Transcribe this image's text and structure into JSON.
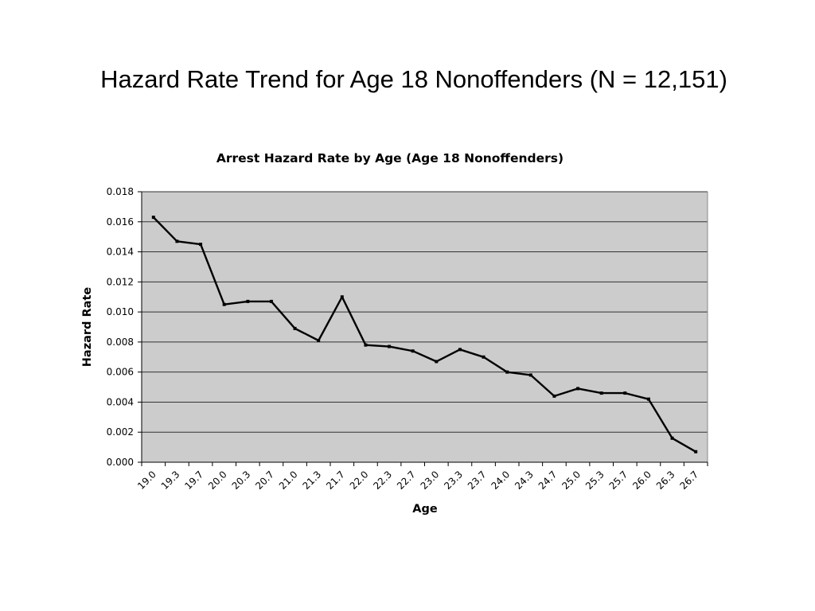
{
  "slide": {
    "title": "Hazard Rate Trend for Age 18 Nonoffenders (N = 12,151)"
  },
  "chart_data": {
    "type": "line",
    "title": "Arrest Hazard Rate by Age (Age 18 Nonoffenders)",
    "xlabel": "Age",
    "ylabel": "Hazard Rate",
    "ylim": [
      0,
      0.018
    ],
    "y_ticks": [
      "0.000",
      "0.002",
      "0.004",
      "0.006",
      "0.008",
      "0.010",
      "0.012",
      "0.014",
      "0.016",
      "0.018"
    ],
    "categories": [
      "19.0",
      "19.3",
      "19.7",
      "20.0",
      "20.3",
      "20.7",
      "21.0",
      "21.3",
      "21.7",
      "22.0",
      "22.3",
      "22.7",
      "23.0",
      "23.3",
      "23.7",
      "24.0",
      "24.3",
      "24.7",
      "25.0",
      "25.3",
      "25.7",
      "26.0",
      "26.3",
      "26.7"
    ],
    "series": [
      {
        "values": [
          0.0163,
          0.0147,
          0.0145,
          0.0105,
          0.0107,
          0.0107,
          0.0089,
          0.0081,
          0.011,
          0.0078,
          0.0077,
          0.0074,
          0.0067,
          0.0075,
          0.007,
          0.006,
          0.0058,
          0.0044,
          0.0049,
          0.0046,
          0.0046,
          0.0042,
          0.0016,
          0.0007
        ]
      }
    ],
    "grid": true,
    "legend": "none",
    "colors": {
      "plot_background": "#cccccc",
      "line": "#000000",
      "gridline": "#333333"
    }
  }
}
